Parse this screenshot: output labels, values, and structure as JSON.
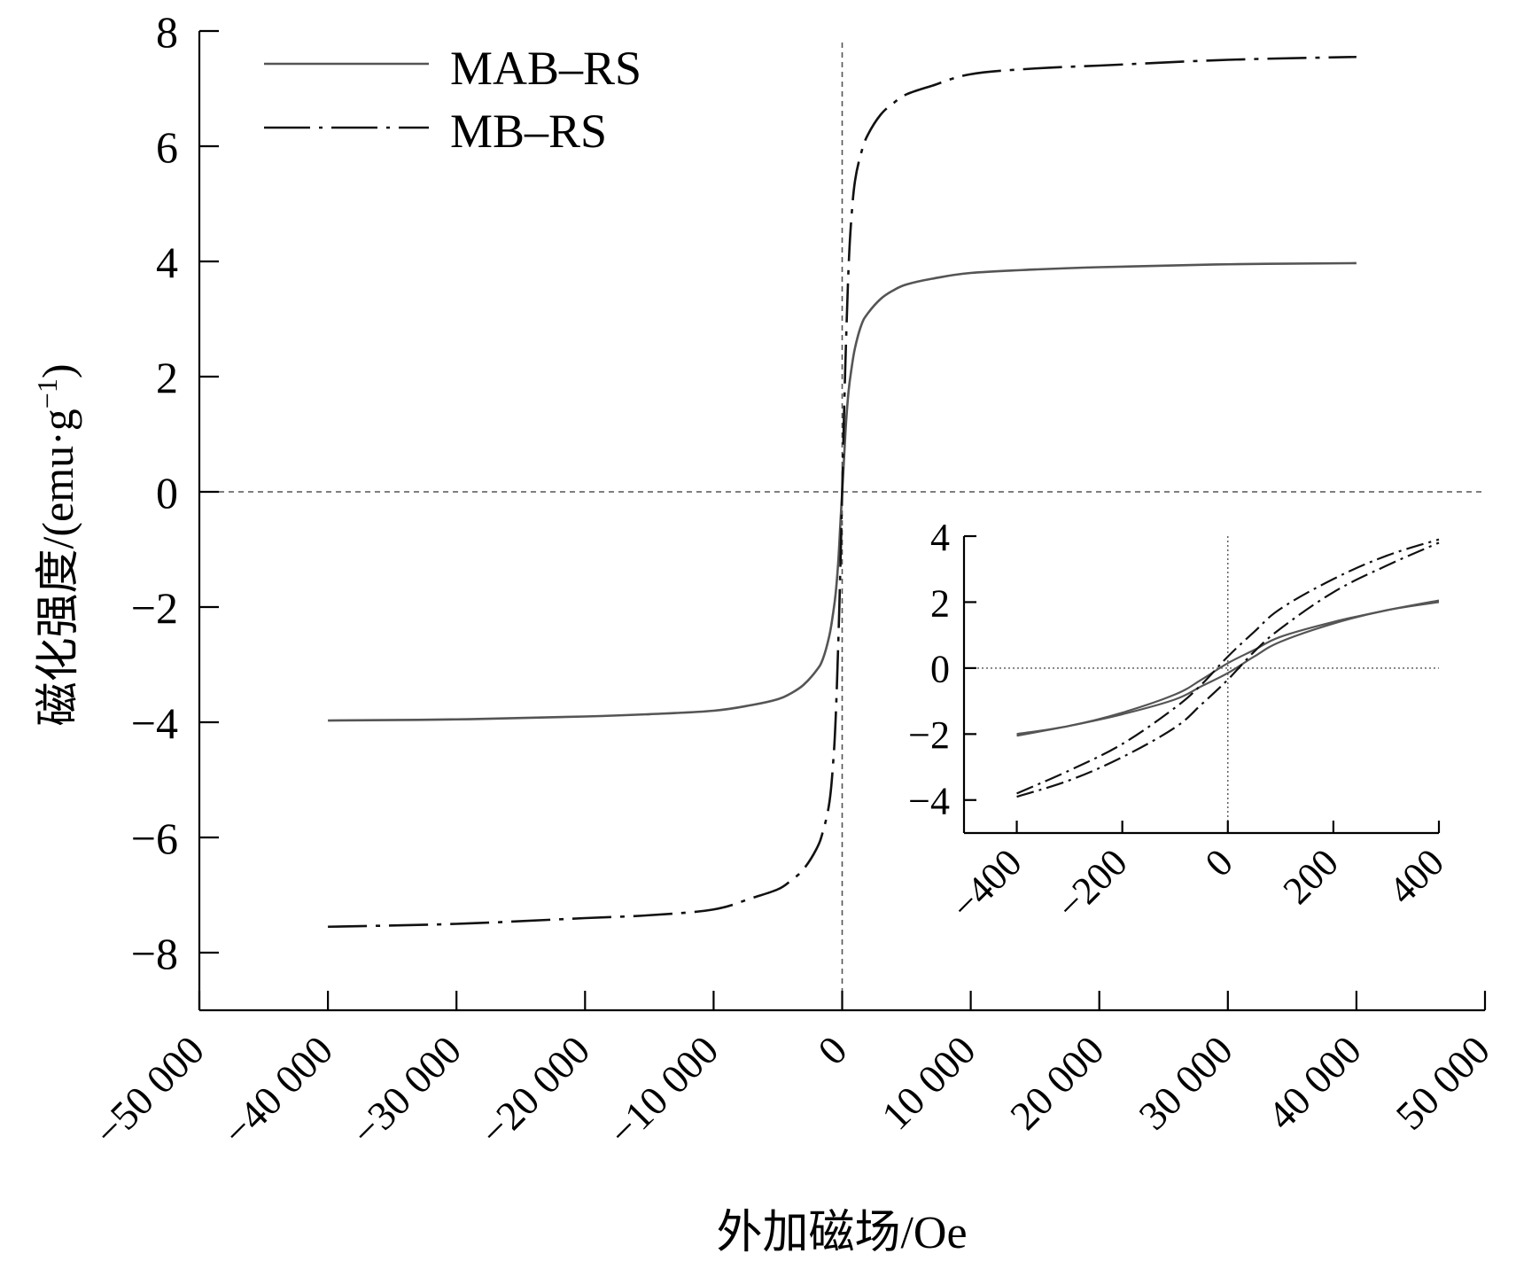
{
  "chart_data": [
    {
      "type": "line",
      "title": "",
      "xlabel": "外加磁场/Oe",
      "ylabel": "磁化强度/(emu·g",
      "ylabel_sup": "−1",
      "ylabel_close": ")",
      "xlim": [
        -50000,
        50000
      ],
      "ylim": [
        -9,
        8
      ],
      "x_ticks": [
        -50000,
        -40000,
        -30000,
        -20000,
        -10000,
        0,
        10000,
        20000,
        30000,
        40000,
        50000
      ],
      "x_tick_labels": [
        "−50 000",
        "−40 000",
        "−30 000",
        "−20 000",
        "−10 000",
        "0",
        "10 000",
        "20 000",
        "30 000",
        "40 000",
        "50 000"
      ],
      "y_ticks": [
        -8,
        -6,
        -4,
        -2,
        0,
        2,
        4,
        6,
        8
      ],
      "y_tick_labels": [
        "−8",
        "−6",
        "−4",
        "−2",
        "0",
        "2",
        "4",
        "6",
        "8"
      ],
      "grid": false,
      "zero_lines": true,
      "legend": "top-left",
      "series": [
        {
          "name": "MAB–RS",
          "style": "solid",
          "color": "#555555",
          "x": [
            -40000,
            -30000,
            -20000,
            -15000,
            -10000,
            -7000,
            -5000,
            -4000,
            -3000,
            -2000,
            -1500,
            -1000,
            -700,
            -500,
            -300,
            -150,
            0,
            150,
            300,
            500,
            700,
            1000,
            1500,
            2000,
            3000,
            4000,
            5000,
            7000,
            10000,
            15000,
            20000,
            30000,
            40000
          ],
          "y": [
            -3.97,
            -3.95,
            -3.9,
            -3.86,
            -3.8,
            -3.7,
            -3.6,
            -3.5,
            -3.35,
            -3.1,
            -2.9,
            -2.5,
            -2.1,
            -1.75,
            -1.2,
            -0.6,
            0,
            0.6,
            1.2,
            1.75,
            2.1,
            2.5,
            2.9,
            3.1,
            3.35,
            3.5,
            3.6,
            3.7,
            3.8,
            3.86,
            3.9,
            3.95,
            3.97
          ]
        },
        {
          "name": "MB–RS",
          "style": "dashdot",
          "color": "#111111",
          "x": [
            -40000,
            -30000,
            -20000,
            -15000,
            -10000,
            -7000,
            -5000,
            -4000,
            -3000,
            -2000,
            -1500,
            -1000,
            -700,
            -500,
            -300,
            -150,
            0,
            150,
            300,
            500,
            700,
            1000,
            1500,
            2000,
            3000,
            4000,
            5000,
            7000,
            10000,
            15000,
            20000,
            30000,
            40000
          ],
          "y": [
            -7.55,
            -7.5,
            -7.4,
            -7.35,
            -7.25,
            -7.05,
            -6.9,
            -6.75,
            -6.55,
            -6.2,
            -5.9,
            -5.4,
            -4.7,
            -3.9,
            -2.6,
            -1.4,
            0,
            1.4,
            2.6,
            3.9,
            4.7,
            5.4,
            5.9,
            6.2,
            6.55,
            6.75,
            6.9,
            7.05,
            7.25,
            7.35,
            7.4,
            7.5,
            7.55
          ]
        }
      ]
    },
    {
      "type": "line",
      "title": "",
      "xlabel": "",
      "ylabel": "",
      "xlim": [
        -500,
        400
      ],
      "ylim": [
        -5,
        4
      ],
      "x_ticks": [
        -400,
        -200,
        0,
        200,
        400
      ],
      "x_tick_labels": [
        "−400",
        "−200",
        "0",
        "200",
        "400"
      ],
      "y_ticks": [
        -4,
        -2,
        0,
        2,
        4
      ],
      "y_tick_labels": [
        "−4",
        "−2",
        "0",
        "2",
        "4"
      ],
      "grid": false,
      "zero_lines": true,
      "series": [
        {
          "style": "solid",
          "color": "#555555",
          "x": [
            -400,
            -300,
            -200,
            -100,
            -50,
            0,
            50,
            100,
            200,
            300,
            400
          ],
          "y": [
            -2.05,
            -1.75,
            -1.4,
            -0.95,
            -0.55,
            -0.15,
            0.35,
            0.8,
            1.35,
            1.75,
            2.0
          ]
        },
        {
          "style": "solid",
          "color": "#555555",
          "x": [
            -400,
            -300,
            -200,
            -100,
            -50,
            0,
            50,
            100,
            200,
            300,
            400
          ],
          "y": [
            -2.0,
            -1.75,
            -1.35,
            -0.8,
            -0.35,
            0.15,
            0.55,
            0.95,
            1.4,
            1.75,
            2.05
          ]
        },
        {
          "style": "dashdot",
          "color": "#111111",
          "x": [
            -400,
            -300,
            -200,
            -100,
            -50,
            0,
            50,
            100,
            200,
            300,
            400
          ],
          "y": [
            -3.9,
            -3.4,
            -2.7,
            -1.8,
            -1.1,
            -0.35,
            0.5,
            1.2,
            2.3,
            3.1,
            3.8
          ]
        },
        {
          "style": "dashdot",
          "color": "#111111",
          "x": [
            -400,
            -300,
            -200,
            -100,
            -50,
            0,
            50,
            100,
            200,
            300,
            400
          ],
          "y": [
            -3.8,
            -3.1,
            -2.3,
            -1.2,
            -0.5,
            0.35,
            1.1,
            1.8,
            2.7,
            3.4,
            3.9
          ]
        }
      ]
    }
  ]
}
